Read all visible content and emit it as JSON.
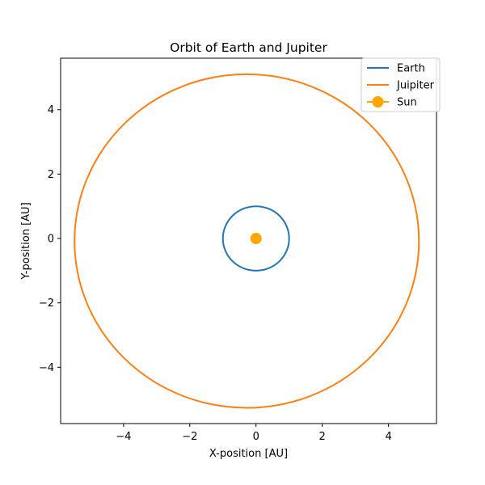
{
  "chart_data": {
    "type": "line",
    "title": "Orbit of Earth and Jupiter",
    "xlabel": "X-position [AU]",
    "ylabel": "Y-position [AU]",
    "xlim": [
      -5.9,
      5.45
    ],
    "ylim": [
      -5.75,
      5.6
    ],
    "xticks": [
      -4,
      -2,
      0,
      2,
      4
    ],
    "yticks": [
      -4,
      -2,
      0,
      2,
      4
    ],
    "grid": false,
    "legend_position": "top-right",
    "series": [
      {
        "name": "Earth",
        "kind": "orbit",
        "center": [
          0,
          0
        ],
        "a": 1.0,
        "b": 1.0,
        "color": "#1f77b4"
      },
      {
        "name": "Juipiter",
        "kind": "orbit",
        "center": [
          -0.28,
          -0.08
        ],
        "a": 5.2,
        "b": 5.18,
        "color": "#ff7f0e"
      },
      {
        "name": "Sun",
        "kind": "point",
        "x": 0,
        "y": 0,
        "color": "#ffa500"
      }
    ]
  }
}
